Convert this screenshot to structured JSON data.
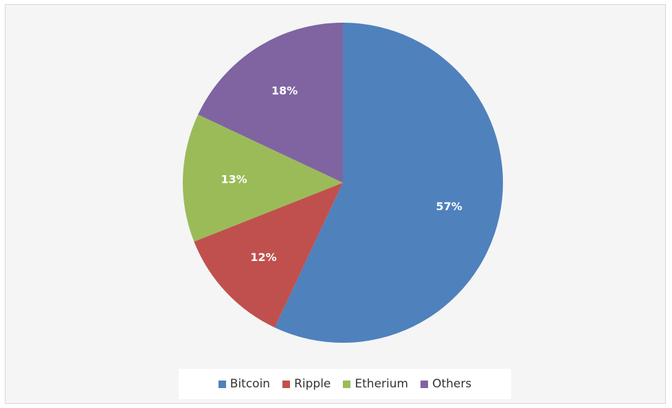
{
  "chart_data": {
    "type": "pie",
    "title": "",
    "categories": [
      "Bitcoin",
      "Ripple",
      "Etherium",
      "Others"
    ],
    "values": [
      57,
      12,
      13,
      18
    ],
    "labels": [
      "57%",
      "12%",
      "13%",
      "18%"
    ],
    "colors": [
      "#4f81bd",
      "#c0504d",
      "#9bbb59",
      "#8064a2"
    ],
    "legend_position": "bottom",
    "start": "12 o'clock, clockwise"
  }
}
